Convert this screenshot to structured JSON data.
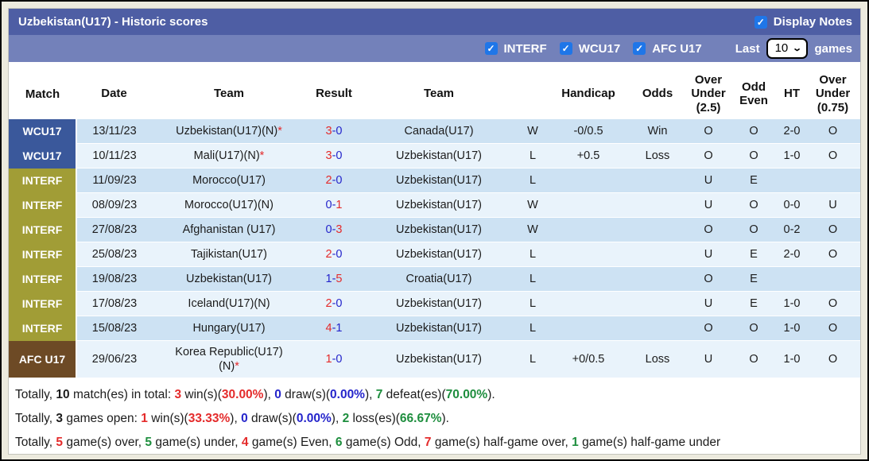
{
  "colors": {
    "red": "#e42b2b",
    "green": "#1e8e3e",
    "blue": "#2525cb",
    "black": "#1c1c1c",
    "pageBg": "#eceade",
    "titleBarBg": "#4e5ea4",
    "filterBarBg": "#7381ba",
    "rowOdd": "#cde2f3",
    "rowEven": "#e9f3fb",
    "wcu17Bg": "#3a589b",
    "interfBg": "#a19d36",
    "afcu17Bg": "#6d4a25",
    "checkboxBlue": "#1f76e8"
  },
  "title_bar": {
    "title": "Uzbekistan(U17) - Historic scores",
    "display_notes_label": "Display Notes",
    "display_notes_checked": true
  },
  "filter_bar": {
    "filters": [
      {
        "label": "INTERF",
        "checked": true
      },
      {
        "label": "WCU17",
        "checked": true
      },
      {
        "label": "AFC U17",
        "checked": true
      }
    ],
    "last_label": "Last",
    "last_value": "10",
    "games_label": "games"
  },
  "table": {
    "columns": [
      "Match",
      "Date",
      "Team",
      "Result",
      "Team",
      "",
      "Handicap",
      "Odds",
      "Over Under (2.5)",
      "Odd Even",
      "HT",
      "Over Under (0.75)"
    ],
    "rows": [
      {
        "match": "WCU17",
        "group": "wcu17",
        "date": "13/11/23",
        "t1": "Uzbekistan(U17)(N)",
        "t1b": "",
        "t1star": "*",
        "t1c": "red",
        "s1": "3",
        "s1c": "red",
        "s2": "0",
        "s2c": "blue",
        "t2": "Canada(U17)",
        "t2c": "black",
        "wl": "W",
        "wlc": "red",
        "hcp": "-0/0.5",
        "odds": "Win",
        "oddsc": "red",
        "ou": "O",
        "ouc": "red",
        "oe": "O",
        "oec": "green",
        "ht": "2-0",
        "ou2": "O",
        "ou2c": "red"
      },
      {
        "match": "WCU17",
        "group": "wcu17",
        "date": "10/11/23",
        "t1": "Mali(U17)(N)",
        "t1b": "",
        "t1star": "*",
        "t1c": "black",
        "s1": "3",
        "s1c": "red",
        "s2": "0",
        "s2c": "blue",
        "t2": "Uzbekistan(U17)",
        "t2c": "green",
        "wl": "L",
        "wlc": "green",
        "hcp": "+0.5",
        "odds": "Loss",
        "oddsc": "green",
        "ou": "O",
        "ouc": "red",
        "oe": "O",
        "oec": "green",
        "ht": "1-0",
        "ou2": "O",
        "ou2c": "red"
      },
      {
        "match": "INTERF",
        "group": "interf",
        "date": "11/09/23",
        "t1": "Morocco(U17)",
        "t1b": "",
        "t1star": "",
        "t1c": "black",
        "s1": "2",
        "s1c": "red",
        "s2": "0",
        "s2c": "blue",
        "t2": "Uzbekistan(U17)",
        "t2c": "green",
        "wl": "L",
        "wlc": "green",
        "hcp": "",
        "odds": "",
        "oddsc": "black",
        "ou": "U",
        "ouc": "green",
        "oe": "E",
        "oec": "red",
        "ht": "",
        "ou2": "",
        "ou2c": "red"
      },
      {
        "match": "INTERF",
        "group": "interf",
        "date": "08/09/23",
        "t1": "Morocco(U17)(N)",
        "t1b": "",
        "t1star": "",
        "t1c": "black",
        "s1": "0",
        "s1c": "blue",
        "s2": "1",
        "s2c": "red",
        "t2": "Uzbekistan(U17)",
        "t2c": "red",
        "wl": "W",
        "wlc": "red",
        "hcp": "",
        "odds": "",
        "oddsc": "black",
        "ou": "U",
        "ouc": "green",
        "oe": "O",
        "oec": "green",
        "ht": "0-0",
        "ou2": "U",
        "ou2c": "green"
      },
      {
        "match": "INTERF",
        "group": "interf",
        "date": "27/08/23",
        "t1": "Afghanistan (U17)",
        "t1b": "",
        "t1star": "",
        "t1c": "black",
        "s1": "0",
        "s1c": "blue",
        "s2": "3",
        "s2c": "red",
        "t2": "Uzbekistan(U17)",
        "t2c": "red",
        "wl": "W",
        "wlc": "red",
        "hcp": "",
        "odds": "",
        "oddsc": "black",
        "ou": "O",
        "ouc": "red",
        "oe": "O",
        "oec": "green",
        "ht": "0-2",
        "ou2": "O",
        "ou2c": "red"
      },
      {
        "match": "INTERF",
        "group": "interf",
        "date": "25/08/23",
        "t1": "Tajikistan(U17)",
        "t1b": "",
        "t1star": "",
        "t1c": "black",
        "s1": "2",
        "s1c": "red",
        "s2": "0",
        "s2c": "blue",
        "t2": "Uzbekistan(U17)",
        "t2c": "green",
        "wl": "L",
        "wlc": "green",
        "hcp": "",
        "odds": "",
        "oddsc": "black",
        "ou": "U",
        "ouc": "green",
        "oe": "E",
        "oec": "red",
        "ht": "2-0",
        "ou2": "O",
        "ou2c": "red"
      },
      {
        "match": "INTERF",
        "group": "interf",
        "date": "19/08/23",
        "t1": "Uzbekistan(U17)",
        "t1b": "",
        "t1star": "",
        "t1c": "green",
        "s1": "1",
        "s1c": "blue",
        "s2": "5",
        "s2c": "red",
        "t2": "Croatia(U17)",
        "t2c": "black",
        "wl": "L",
        "wlc": "green",
        "hcp": "",
        "odds": "",
        "oddsc": "black",
        "ou": "O",
        "ouc": "red",
        "oe": "E",
        "oec": "red",
        "ht": "",
        "ou2": "",
        "ou2c": "red"
      },
      {
        "match": "INTERF",
        "group": "interf",
        "date": "17/08/23",
        "t1": "Iceland(U17)(N)",
        "t1b": "",
        "t1star": "",
        "t1c": "black",
        "s1": "2",
        "s1c": "red",
        "s2": "0",
        "s2c": "blue",
        "t2": "Uzbekistan(U17)",
        "t2c": "green",
        "wl": "L",
        "wlc": "green",
        "hcp": "",
        "odds": "",
        "oddsc": "black",
        "ou": "U",
        "ouc": "green",
        "oe": "E",
        "oec": "red",
        "ht": "1-0",
        "ou2": "O",
        "ou2c": "red"
      },
      {
        "match": "INTERF",
        "group": "interf",
        "date": "15/08/23",
        "t1": "Hungary(U17)",
        "t1b": "",
        "t1star": "",
        "t1c": "black",
        "s1": "4",
        "s1c": "red",
        "s2": "1",
        "s2c": "blue",
        "t2": "Uzbekistan(U17)",
        "t2c": "green",
        "wl": "L",
        "wlc": "green",
        "hcp": "",
        "odds": "",
        "oddsc": "black",
        "ou": "O",
        "ouc": "red",
        "oe": "O",
        "oec": "green",
        "ht": "1-0",
        "ou2": "O",
        "ou2c": "red"
      },
      {
        "match": "AFC U17",
        "group": "afcu17",
        "date": "29/06/23",
        "t1": "Korea Republic(U17)",
        "t1b": "(N)",
        "t1star": "*",
        "t1c": "black",
        "s1": "1",
        "s1c": "red",
        "s2": "0",
        "s2c": "blue",
        "t2": "Uzbekistan(U17)",
        "t2c": "green",
        "wl": "L",
        "wlc": "green",
        "hcp": "+0/0.5",
        "odds": "Loss",
        "oddsc": "green",
        "ou": "U",
        "ouc": "green",
        "oe": "O",
        "oec": "green",
        "ht": "1-0",
        "ou2": "O",
        "ou2c": "red"
      }
    ]
  },
  "summary": {
    "lines": [
      {
        "segments": [
          {
            "t": "Totally, ",
            "c": "black",
            "b": false
          },
          {
            "t": "10",
            "c": "black",
            "b": true
          },
          {
            "t": " match(es) in total: ",
            "c": "black",
            "b": false
          },
          {
            "t": "3",
            "c": "red",
            "b": true
          },
          {
            "t": " win(s)(",
            "c": "black",
            "b": false
          },
          {
            "t": "30.00%",
            "c": "red",
            "b": true
          },
          {
            "t": "), ",
            "c": "black",
            "b": false
          },
          {
            "t": "0",
            "c": "blue",
            "b": true
          },
          {
            "t": " draw(s)(",
            "c": "black",
            "b": false
          },
          {
            "t": "0.00%",
            "c": "blue",
            "b": true
          },
          {
            "t": "), ",
            "c": "black",
            "b": false
          },
          {
            "t": "7",
            "c": "green",
            "b": true
          },
          {
            "t": " defeat(es)(",
            "c": "black",
            "b": false
          },
          {
            "t": "70.00%",
            "c": "green",
            "b": true
          },
          {
            "t": ").",
            "c": "black",
            "b": false
          }
        ]
      },
      {
        "segments": [
          {
            "t": "Totally, ",
            "c": "black",
            "b": false
          },
          {
            "t": "3",
            "c": "black",
            "b": true
          },
          {
            "t": " games open: ",
            "c": "black",
            "b": false
          },
          {
            "t": "1",
            "c": "red",
            "b": true
          },
          {
            "t": " win(s)(",
            "c": "black",
            "b": false
          },
          {
            "t": "33.33%",
            "c": "red",
            "b": true
          },
          {
            "t": "), ",
            "c": "black",
            "b": false
          },
          {
            "t": "0",
            "c": "blue",
            "b": true
          },
          {
            "t": " draw(s)(",
            "c": "black",
            "b": false
          },
          {
            "t": "0.00%",
            "c": "blue",
            "b": true
          },
          {
            "t": "), ",
            "c": "black",
            "b": false
          },
          {
            "t": "2",
            "c": "green",
            "b": true
          },
          {
            "t": " loss(es)(",
            "c": "black",
            "b": false
          },
          {
            "t": "66.67%",
            "c": "green",
            "b": true
          },
          {
            "t": ").",
            "c": "black",
            "b": false
          }
        ]
      },
      {
        "segments": [
          {
            "t": "Totally, ",
            "c": "black",
            "b": false
          },
          {
            "t": "5",
            "c": "red",
            "b": true
          },
          {
            "t": " game(s) over, ",
            "c": "black",
            "b": false
          },
          {
            "t": "5",
            "c": "green",
            "b": true
          },
          {
            "t": " game(s) under, ",
            "c": "black",
            "b": false
          },
          {
            "t": "4",
            "c": "red",
            "b": true
          },
          {
            "t": " game(s) Even, ",
            "c": "black",
            "b": false
          },
          {
            "t": "6",
            "c": "green",
            "b": true
          },
          {
            "t": " game(s) Odd, ",
            "c": "black",
            "b": false
          },
          {
            "t": "7",
            "c": "red",
            "b": true
          },
          {
            "t": " game(s) half-game over, ",
            "c": "black",
            "b": false
          },
          {
            "t": "1",
            "c": "green",
            "b": true
          },
          {
            "t": " game(s) half-game under",
            "c": "black",
            "b": false
          }
        ]
      }
    ]
  }
}
